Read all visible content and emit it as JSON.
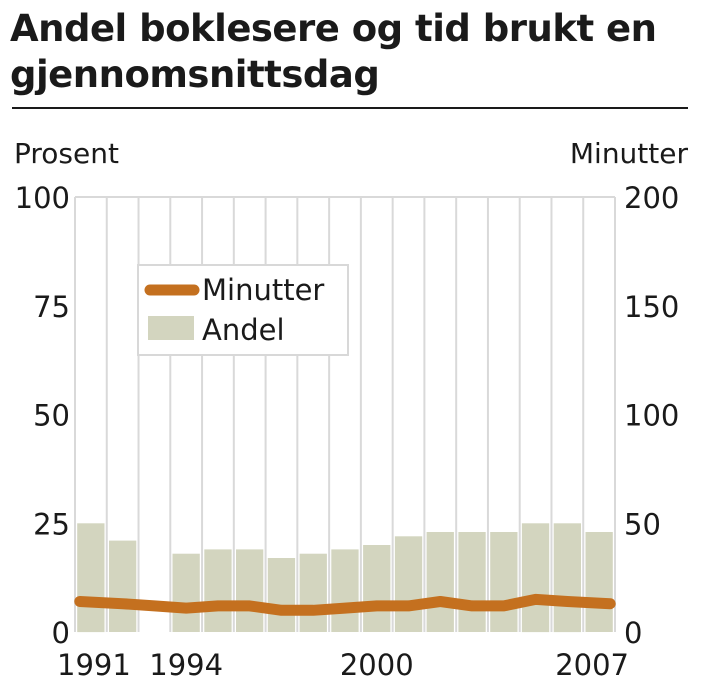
{
  "title": "Andel boklesere og tid brukt en gjennomsnittsdag",
  "chart_data": {
    "type": "bar",
    "title": "Andel boklesere og tid brukt en gjennomsnittsdag",
    "ylabel_left": "Prosent",
    "ylabel_right": "Minutter",
    "ylim_left": [
      0,
      100
    ],
    "ylim_right": [
      0,
      200
    ],
    "yticks_left": [
      "0",
      "25",
      "50",
      "75",
      "100"
    ],
    "yticks_right": [
      "0",
      "50",
      "100",
      "150",
      "200"
    ],
    "years": [
      1991,
      1992,
      1993,
      1994,
      1995,
      1996,
      1997,
      1998,
      1999,
      2000,
      2001,
      2002,
      2003,
      2004,
      2005,
      2006,
      2007
    ],
    "xtick_labels": [
      "1991",
      "1994",
      "2000",
      "2007"
    ],
    "grid": "vertical",
    "legend_position": "top-left",
    "series": [
      {
        "name": "Andel",
        "type": "bar",
        "axis": "left",
        "color": "#d3d5bf",
        "values": [
          25,
          21,
          0,
          18,
          19,
          19,
          17,
          18,
          19,
          20,
          22,
          23,
          23,
          23,
          25,
          25,
          23
        ]
      },
      {
        "name": "Minutter",
        "type": "line",
        "axis": "right",
        "color": "#c4701f",
        "values": [
          14,
          13,
          12,
          11,
          12,
          12,
          10,
          10,
          11,
          12,
          12,
          14,
          12,
          12,
          15,
          14,
          13
        ]
      }
    ]
  }
}
